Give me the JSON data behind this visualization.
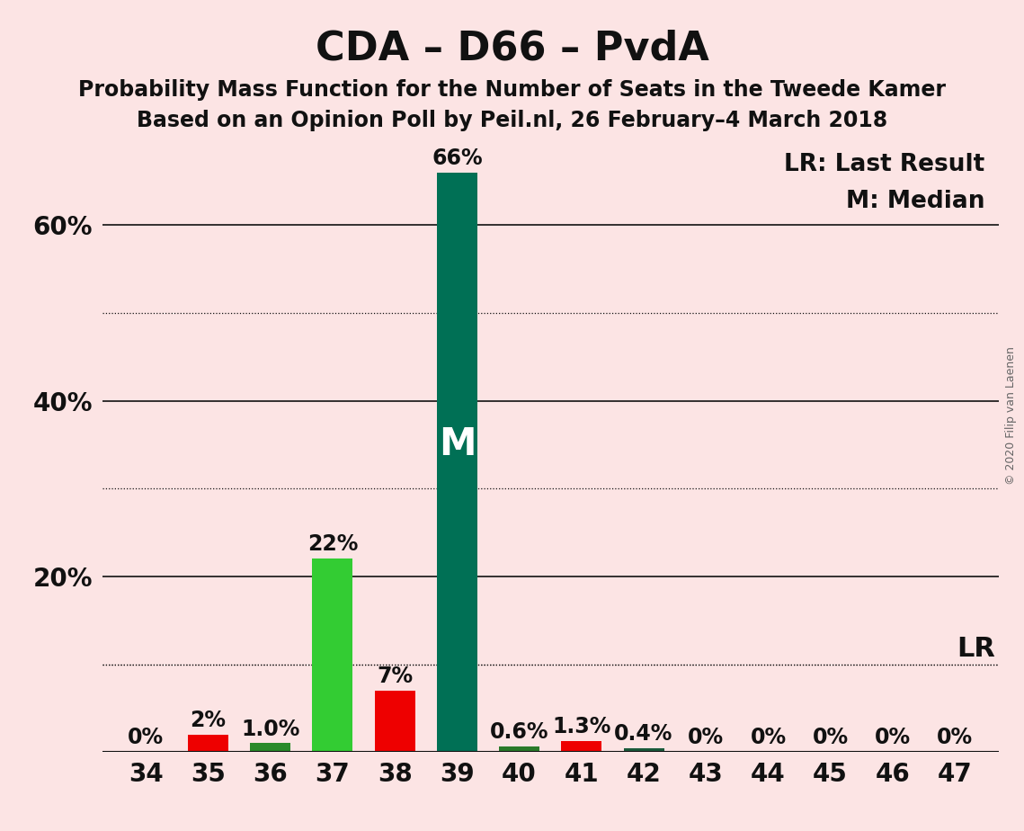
{
  "title": "CDA – D66 – PvdA",
  "subtitle1": "Probability Mass Function for the Number of Seats in the Tweede Kamer",
  "subtitle2": "Based on an Opinion Poll by Peil.nl, 26 February–4 March 2018",
  "copyright": "© 2020 Filip van Laenen",
  "legend_lr": "LR: Last Result",
  "legend_m": "M: Median",
  "background_color": "#fce4e4",
  "categories": [
    34,
    35,
    36,
    37,
    38,
    39,
    40,
    41,
    42,
    43,
    44,
    45,
    46,
    47
  ],
  "values": [
    0.0,
    2.0,
    1.0,
    22.0,
    7.0,
    66.0,
    0.6,
    1.3,
    0.4,
    0.0,
    0.0,
    0.0,
    0.0,
    0.0
  ],
  "labels": [
    "0%",
    "2%",
    "1.0%",
    "22%",
    "7%",
    "66%",
    "0.6%",
    "1.3%",
    "0.4%",
    "0%",
    "0%",
    "0%",
    "0%",
    "0%"
  ],
  "bar_colors": [
    "#1a6b1a",
    "#ee0000",
    "#2a8a2a",
    "#33cc33",
    "#ee0000",
    "#007055",
    "#2a7a2a",
    "#ee0000",
    "#1a5a3a",
    "#1a6b1a",
    "#1a6b1a",
    "#1a6b1a",
    "#1a6b1a",
    "#1a6b1a"
  ],
  "median_bar_index": 5,
  "lr_value": 10.0,
  "ylim": [
    0,
    70
  ],
  "solid_yticks": [
    20,
    40,
    60
  ],
  "dotted_yticks": [
    10,
    30,
    50
  ],
  "all_yticks": [
    0,
    10,
    20,
    30,
    40,
    50,
    60
  ],
  "ytick_labels_map": {
    "20": "20%",
    "40": "40%",
    "60": "60%"
  },
  "title_fontsize": 32,
  "subtitle_fontsize": 17,
  "axis_fontsize": 20,
  "bar_label_fontsize": 17,
  "median_label_fontsize": 30,
  "legend_fontsize": 19,
  "lr_label_fontsize": 22,
  "copyright_fontsize": 9
}
